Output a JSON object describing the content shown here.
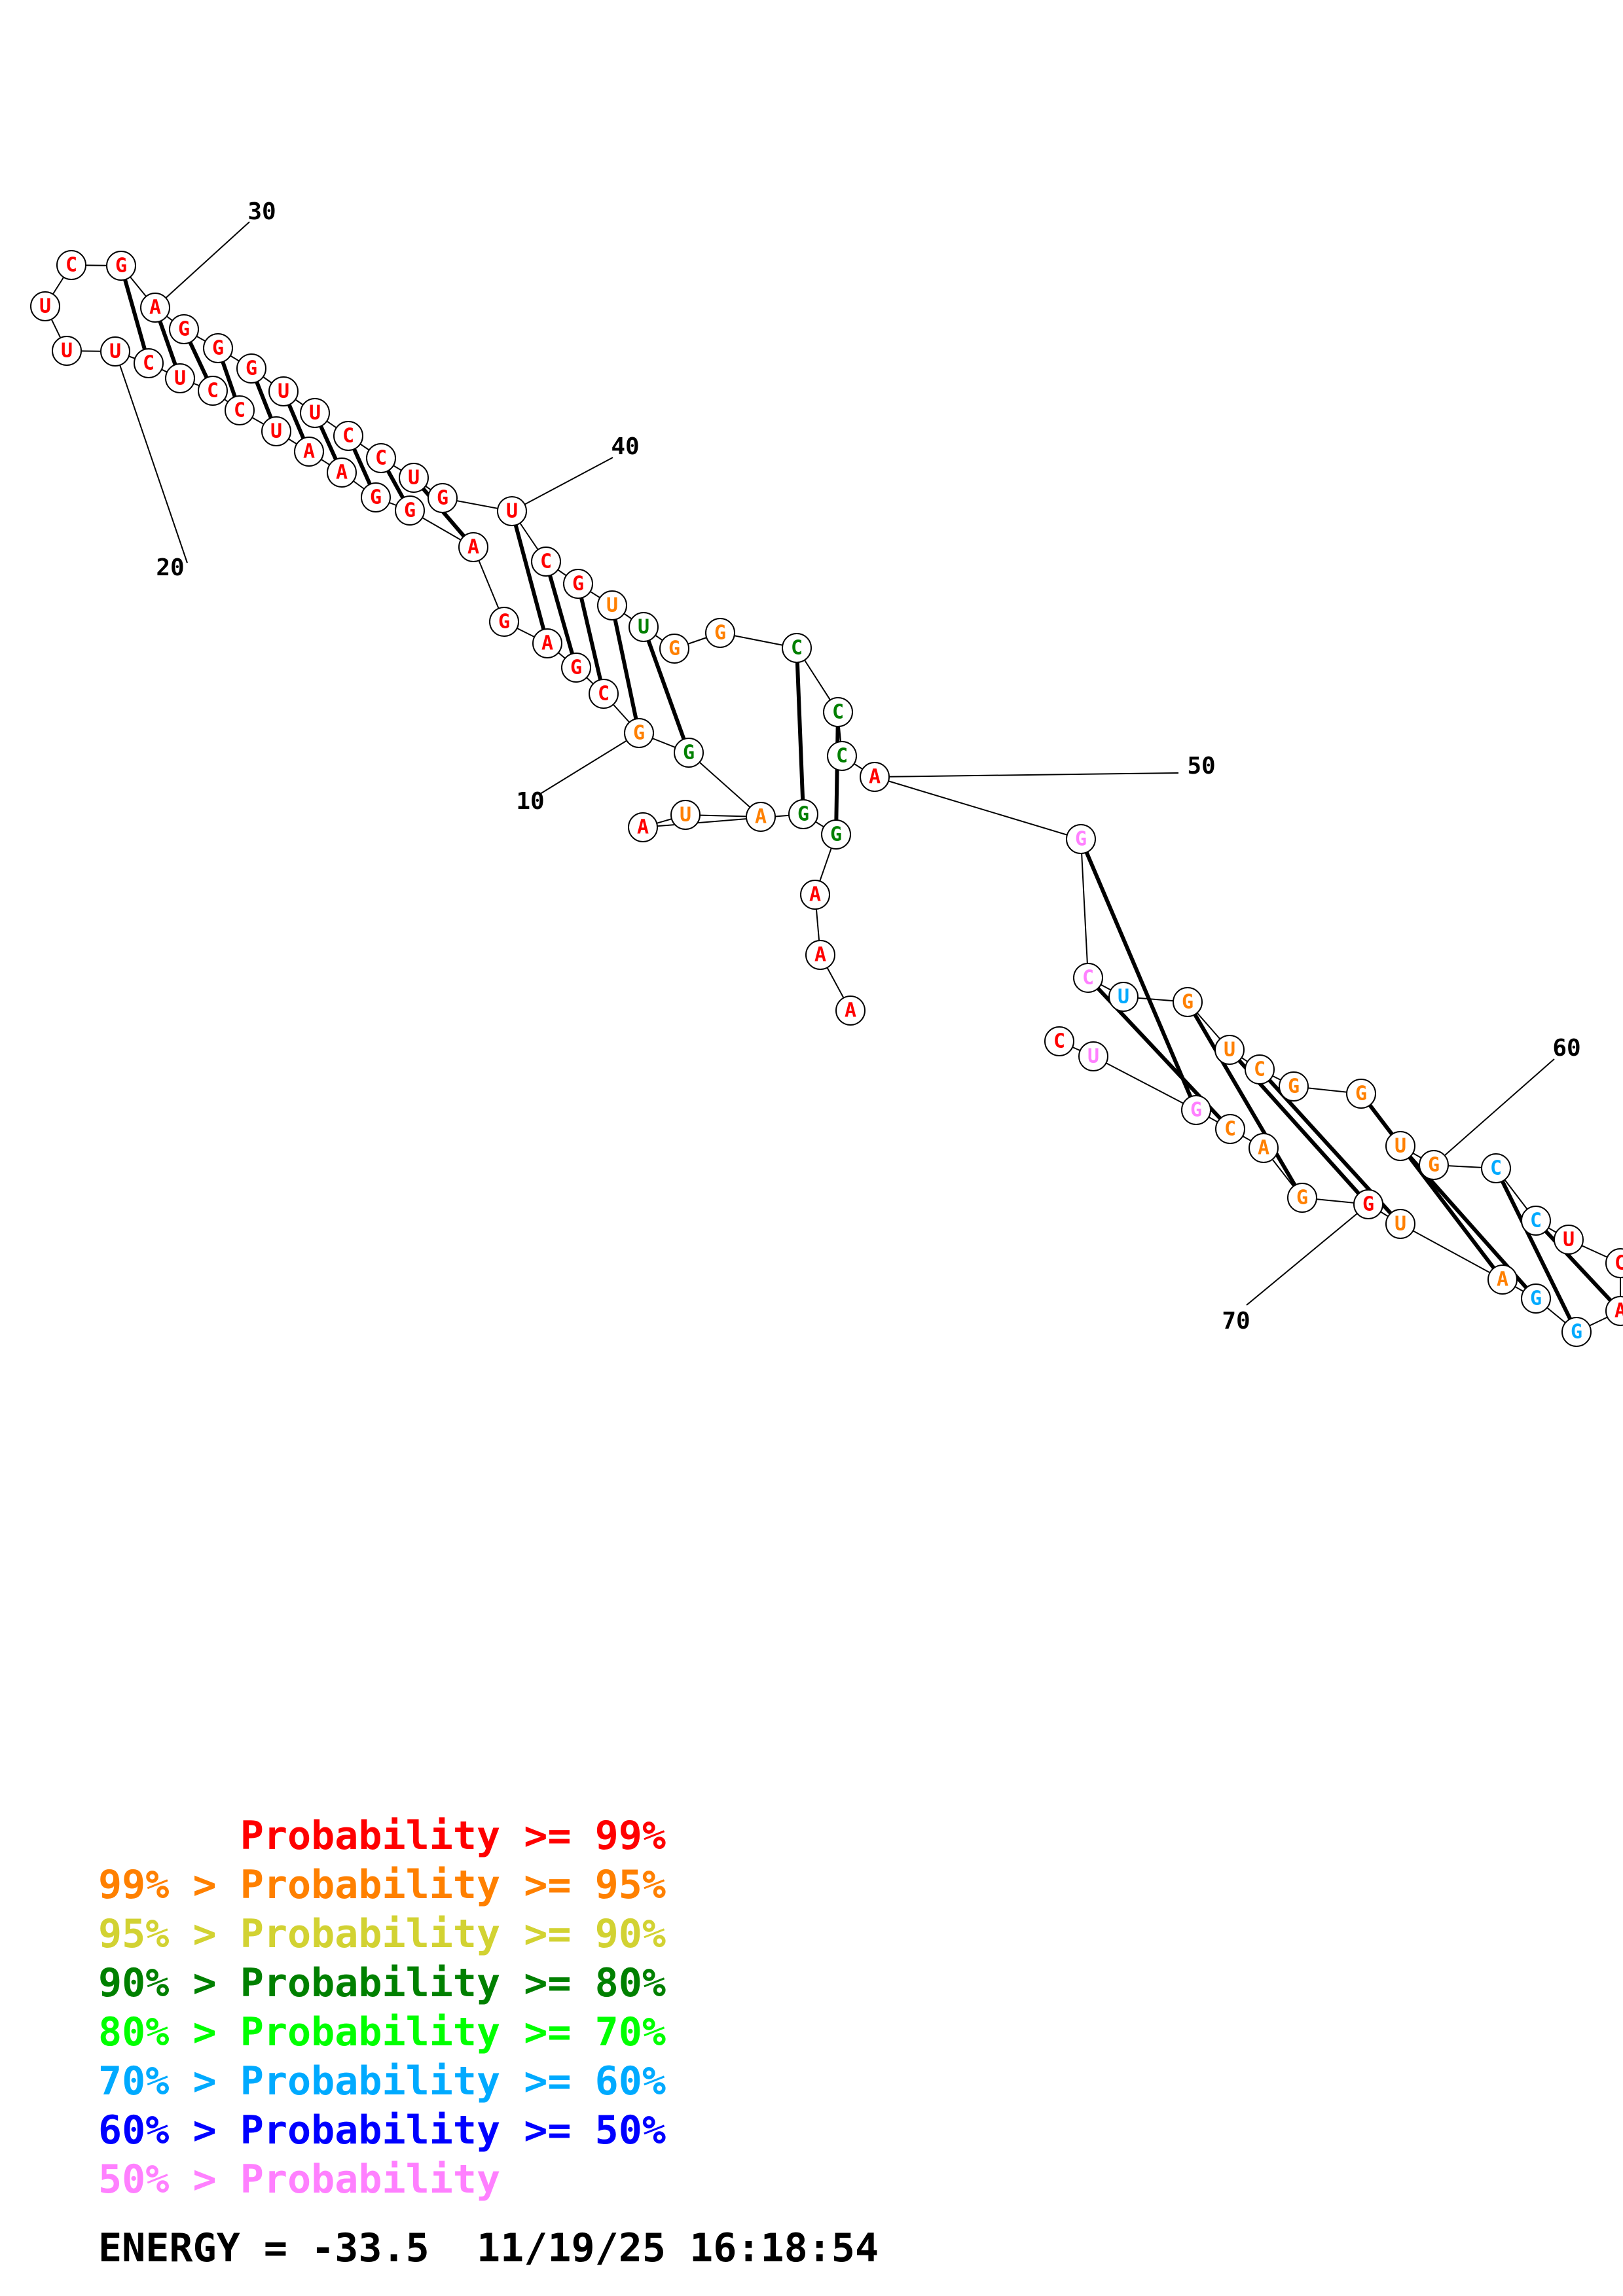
{
  "colors": {
    "p99": "#ff0000",
    "p95": "#ff8000",
    "p90": "#d2d232",
    "p80": "#008000",
    "p70": "#00ff00",
    "p60": "#00aaff",
    "p50": "#0000ff",
    "plt50": "#ff80ff"
  },
  "nucleotides": [
    {
      "base": "A",
      "prob": "p99"
    },
    {
      "base": "A",
      "prob": "p99"
    },
    {
      "base": "A",
      "prob": "p99"
    },
    {
      "base": "G",
      "prob": "p80"
    },
    {
      "base": "G",
      "prob": "p80"
    },
    {
      "base": "A",
      "prob": "p99"
    },
    {
      "base": "U",
      "prob": "p95"
    },
    {
      "base": "A",
      "prob": "p95"
    },
    {
      "base": "G",
      "prob": "p80"
    },
    {
      "base": "G",
      "prob": "p95"
    },
    {
      "base": "C",
      "prob": "p99"
    },
    {
      "base": "G",
      "prob": "p99"
    },
    {
      "base": "A",
      "prob": "p99"
    },
    {
      "base": "G",
      "prob": "p99"
    },
    {
      "base": "A",
      "prob": "p99"
    },
    {
      "base": "G",
      "prob": "p99"
    },
    {
      "base": "G",
      "prob": "p99"
    },
    {
      "base": "A",
      "prob": "p99"
    },
    {
      "base": "A",
      "prob": "p99"
    },
    {
      "base": "U",
      "prob": "p99"
    },
    {
      "base": "C",
      "prob": "p99"
    },
    {
      "base": "C",
      "prob": "p99"
    },
    {
      "base": "U",
      "prob": "p99"
    },
    {
      "base": "C",
      "prob": "p99"
    },
    {
      "base": "U",
      "prob": "p99"
    },
    {
      "base": "U",
      "prob": "p99"
    },
    {
      "base": "U",
      "prob": "p99"
    },
    {
      "base": "C",
      "prob": "p99"
    },
    {
      "base": "G",
      "prob": "p99"
    },
    {
      "base": "A",
      "prob": "p99"
    },
    {
      "base": "G",
      "prob": "p99"
    },
    {
      "base": "G",
      "prob": "p99"
    },
    {
      "base": "G",
      "prob": "p99"
    },
    {
      "base": "U",
      "prob": "p99"
    },
    {
      "base": "U",
      "prob": "p99"
    },
    {
      "base": "C",
      "prob": "p99"
    },
    {
      "base": "C",
      "prob": "p99"
    },
    {
      "base": "U",
      "prob": "p99"
    },
    {
      "base": "G",
      "prob": "p99"
    },
    {
      "base": "U",
      "prob": "p99"
    },
    {
      "base": "C",
      "prob": "p99"
    },
    {
      "base": "G",
      "prob": "p99"
    },
    {
      "base": "U",
      "prob": "p95"
    },
    {
      "base": "U",
      "prob": "p80"
    },
    {
      "base": "G",
      "prob": "p95"
    },
    {
      "base": "G",
      "prob": "p95"
    },
    {
      "base": "C",
      "prob": "p80"
    },
    {
      "base": "C",
      "prob": "p80"
    },
    {
      "base": "C",
      "prob": "p80"
    },
    {
      "base": "A",
      "prob": "p99"
    },
    {
      "base": "G",
      "prob": "plt50"
    },
    {
      "base": "C",
      "prob": "plt50"
    },
    {
      "base": "U",
      "prob": "p60"
    },
    {
      "base": "G",
      "prob": "p95"
    },
    {
      "base": "U",
      "prob": "p95"
    },
    {
      "base": "C",
      "prob": "p95"
    },
    {
      "base": "G",
      "prob": "p95"
    },
    {
      "base": "G",
      "prob": "p95"
    },
    {
      "base": "U",
      "prob": "p95"
    },
    {
      "base": "G",
      "prob": "p95"
    },
    {
      "base": "C",
      "prob": "p60"
    },
    {
      "base": "C",
      "prob": "p60"
    },
    {
      "base": "U",
      "prob": "p99"
    },
    {
      "base": "C",
      "prob": "p99"
    },
    {
      "base": "A",
      "prob": "p99"
    },
    {
      "base": "G",
      "prob": "p60"
    },
    {
      "base": "G",
      "prob": "p60"
    },
    {
      "base": "A",
      "prob": "p95"
    },
    {
      "base": "U",
      "prob": "p95"
    },
    {
      "base": "G",
      "prob": "p99"
    },
    {
      "base": "G",
      "prob": "p95"
    },
    {
      "base": "A",
      "prob": "p95"
    },
    {
      "base": "C",
      "prob": "p95"
    },
    {
      "base": "G",
      "prob": "plt50"
    },
    {
      "base": "U",
      "prob": "plt50"
    },
    {
      "base": "C",
      "prob": "p99"
    }
  ],
  "pairs": [
    [
      4,
      48
    ],
    [
      5,
      47
    ],
    [
      9,
      44
    ],
    [
      10,
      43
    ],
    [
      11,
      42
    ],
    [
      12,
      41
    ],
    [
      13,
      40
    ],
    [
      15,
      38
    ],
    [
      16,
      37
    ],
    [
      17,
      36
    ],
    [
      18,
      35
    ],
    [
      19,
      34
    ],
    [
      20,
      33
    ],
    [
      21,
      32
    ],
    [
      22,
      31
    ],
    [
      23,
      30
    ],
    [
      24,
      29
    ],
    [
      51,
      74
    ],
    [
      52,
      73
    ],
    [
      54,
      71
    ],
    [
      55,
      70
    ],
    [
      56,
      69
    ],
    [
      58,
      68
    ],
    [
      59,
      67
    ],
    [
      61,
      66
    ],
    [
      62,
      65
    ]
  ],
  "number_labels": [
    "10",
    "20",
    "30",
    "40",
    "50",
    "60",
    "70"
  ],
  "legend": [
    {
      "prefix": "",
      "text": "Probability >= 99%",
      "color_key": "p99"
    },
    {
      "prefix": "99% > ",
      "text": "Probability >= 95%",
      "color_key": "p95"
    },
    {
      "prefix": "95% > ",
      "text": "Probability >= 90%",
      "color_key": "p90"
    },
    {
      "prefix": "90% > ",
      "text": "Probability >= 80%",
      "color_key": "p80"
    },
    {
      "prefix": "80% > ",
      "text": "Probability >= 70%",
      "color_key": "p70"
    },
    {
      "prefix": "70% > ",
      "text": "Probability >= 60%",
      "color_key": "p60"
    },
    {
      "prefix": "60% > ",
      "text": "Probability >= 50%",
      "color_key": "p50"
    },
    {
      "prefix": "50% > ",
      "text": "Probability",
      "color_key": "plt50"
    }
  ],
  "footer": {
    "energy": "ENERGY = -33.5",
    "timestamp": "11/19/25 16:18:54"
  }
}
